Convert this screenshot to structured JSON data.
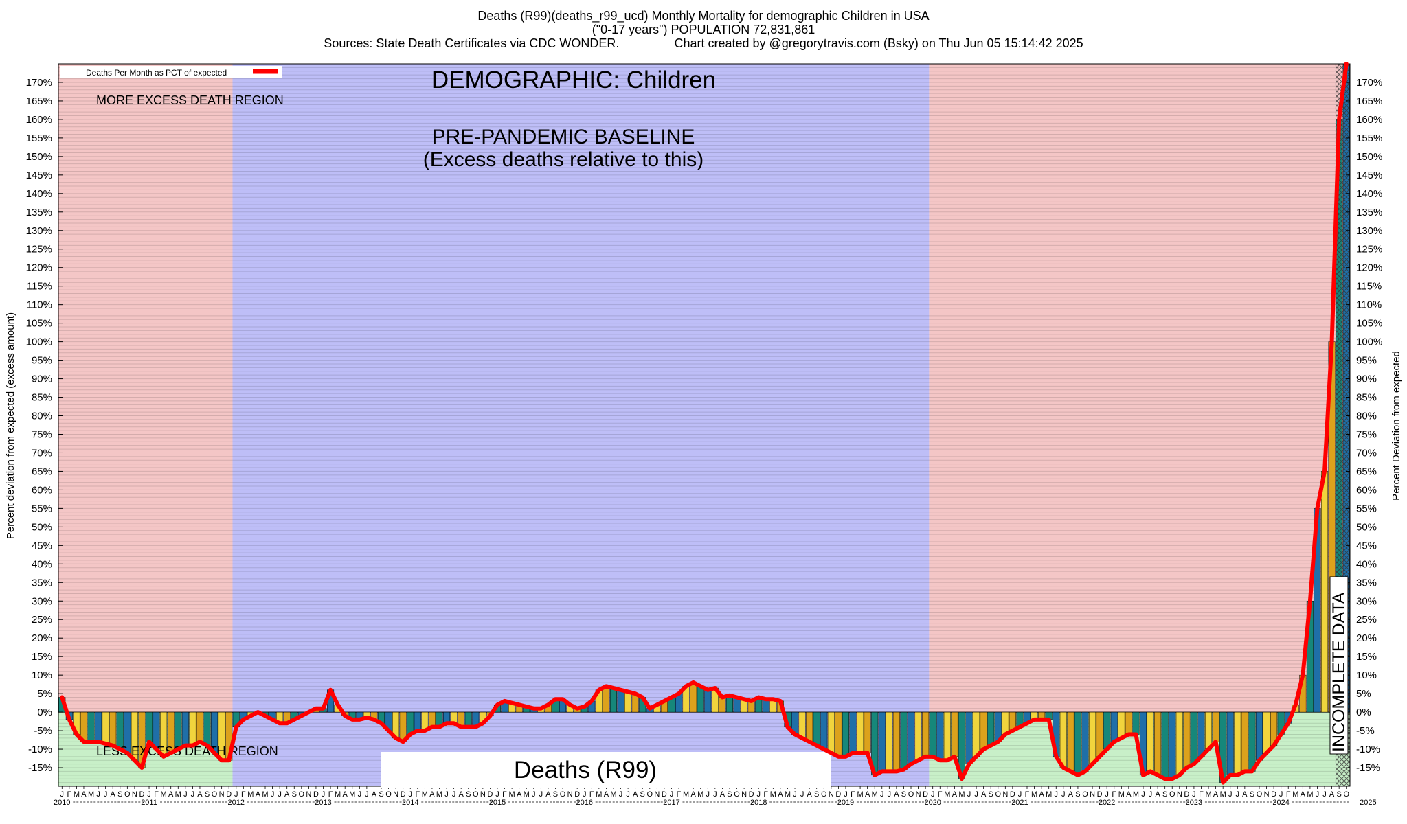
{
  "header": {
    "line1": "Deaths (R99)(deaths_r99_ucd) Monthly Mortality for demographic Children in USA",
    "line2": "(\"0-17 years\") POPULATION 72,831,861",
    "line3": "Sources: State Death Certificates via CDC WONDER.                Chart created by @gregorytravis.com (Bsky) on Thu Jun 05 15:14:42 2025"
  },
  "labels": {
    "demographic": "DEMOGRAPHIC: Children",
    "baseline_line1": "PRE-PANDEMIC BASELINE",
    "baseline_line2": "(Excess deaths relative to this)",
    "more_excess": "MORE EXCESS DEATH REGION",
    "less_excess": "LESS EXCESS DEATH REGION",
    "cause": "Deaths (R99)",
    "incomplete": "INCOMPLETE DATA",
    "legend": "Deaths Per Month as PCT of expected"
  },
  "colors": {
    "excess_region": "#f4c6c6",
    "baseline_region": "#bebef7",
    "less_region": "#c8efc8",
    "line": "#ff0000",
    "bar_palette": [
      "#16877a",
      "#1f6fa8",
      "#f1d43d",
      "#dca21c"
    ]
  },
  "chart_data": {
    "type": "bar",
    "title": "Deaths (R99)(deaths_r99_ucd) Monthly Mortality for demographic Children in USA",
    "ylabel_left": "Percent deviation from expected (excess amount)",
    "ylabel_right": "Percent Deviation from expected",
    "ylim": [
      -20,
      175
    ],
    "y_ticks": [
      -15,
      -10,
      -5,
      0,
      5,
      10,
      15,
      20,
      25,
      30,
      35,
      40,
      45,
      50,
      55,
      60,
      65,
      70,
      75,
      80,
      85,
      90,
      95,
      100,
      105,
      110,
      115,
      120,
      125,
      130,
      135,
      140,
      145,
      150,
      155,
      160,
      165,
      170
    ],
    "y_tick_suffix": "%",
    "x_start": "2010-01",
    "month_letters": [
      "J",
      "F",
      "M",
      "A",
      "M",
      "J",
      "J",
      "A",
      "S",
      "O",
      "N",
      "D"
    ],
    "years": [
      "2010",
      "2011",
      "2012",
      "2013",
      "2014",
      "2015",
      "2016",
      "2017",
      "2018",
      "2019",
      "2020",
      "2021",
      "2022",
      "2023",
      "2024",
      "2025"
    ],
    "grid": true,
    "legend_position": "top-left",
    "regions": [
      {
        "kind": "excess",
        "from": "2010-01",
        "to": "2011-12"
      },
      {
        "kind": "baseline",
        "from": "2012-01",
        "to": "2019-12"
      },
      {
        "kind": "excess",
        "from": "2020-01",
        "to": "2024-08"
      },
      {
        "kind": "incomplete",
        "from": "2024-09",
        "to": "2025-05"
      }
    ],
    "series": [
      {
        "name": "Deaths Per Month as PCT of expected",
        "values": [
          4,
          -2,
          -6,
          -8,
          -8,
          -8,
          -8.5,
          -9,
          -10,
          -11,
          -13,
          -15,
          -8,
          -10,
          -12,
          -11,
          -10,
          -9,
          -9,
          -8,
          -9,
          -11,
          -13,
          -13,
          -4,
          -2,
          -1,
          0,
          -1,
          -2,
          -3,
          -3,
          -2,
          -1,
          0,
          1,
          1,
          6,
          2,
          -1,
          -2,
          -2,
          -1.5,
          -2,
          -3,
          -5,
          -7,
          -8,
          -6,
          -5,
          -5,
          -4,
          -4,
          -3,
          -3,
          -4,
          -4,
          -4,
          -3,
          -1,
          2,
          3,
          2.5,
          2,
          1.5,
          1,
          1,
          2,
          3.5,
          3.5,
          2,
          1,
          1.5,
          3,
          6,
          7,
          6.5,
          6,
          5.5,
          5,
          4,
          1,
          2,
          3,
          4,
          5,
          7,
          8,
          7,
          6,
          6.5,
          4,
          4.5,
          4,
          3.5,
          3,
          4,
          3.5,
          3.5,
          3,
          -4,
          -6,
          -7,
          -8,
          -9,
          -10,
          -11,
          -12,
          -12,
          -11,
          -11,
          -11,
          -17,
          -16,
          -16,
          -16,
          -15.5,
          -14,
          -13,
          -12,
          -12,
          -13,
          -13,
          -12,
          -18,
          -14,
          -12,
          -10,
          -9,
          -8,
          -6,
          -5,
          -4,
          -3,
          -2,
          -2,
          -2,
          -12,
          -15,
          -16,
          -17,
          -16,
          -14,
          -12,
          -10,
          -8,
          -7,
          -6,
          -6,
          -17,
          -16,
          -17,
          -18,
          -18,
          -17,
          -15,
          -14,
          -12,
          -10,
          -8,
          -19,
          -17,
          -17,
          -16,
          -16,
          -13,
          -11,
          -9,
          -6,
          -3,
          2,
          10,
          30,
          55,
          65,
          100,
          160,
          175
        ]
      }
    ]
  }
}
